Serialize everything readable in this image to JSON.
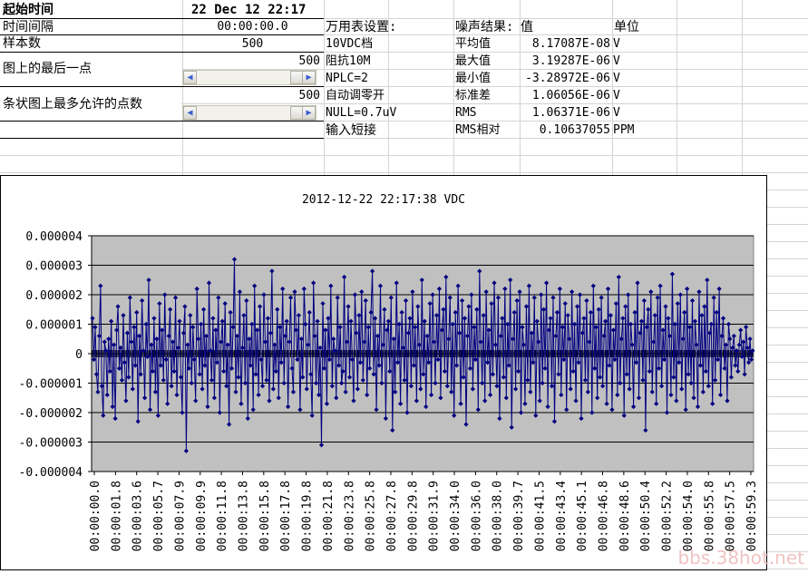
{
  "info": {
    "start_label": "起始时间",
    "start_value": "22 Dec 12 22:17",
    "interval_label": "时间间隔",
    "interval_value": "00:00:00.0",
    "samples_label": "样本数",
    "samples_value": "500",
    "last_point_label": "图上的最后一点",
    "last_point_value": "500",
    "max_points_label": "条状图上最多允许的点数",
    "max_points_value": "500"
  },
  "settings": {
    "header": "万用表设置:",
    "items": [
      "10VDC档",
      "阻抗10M",
      "NPLC=2",
      "自动调零开",
      "NULL=0.7uV",
      "输入短接"
    ]
  },
  "results": {
    "header_name": "噪声结果:",
    "header_value": "值",
    "header_unit": "单位",
    "rows": [
      {
        "name": "平均值",
        "value": "8.17087E-08",
        "unit": "V"
      },
      {
        "name": "最大值",
        "value": "3.19287E-06",
        "unit": "V"
      },
      {
        "name": "最小值",
        "value": "-3.28972E-06",
        "unit": "V"
      },
      {
        "name": "标准差",
        "value": "1.06056E-06",
        "unit": "V"
      },
      {
        "name": "RMS",
        "value": "1.06371E-06",
        "unit": "V"
      },
      {
        "name": "RMS相对",
        "value": "0.10637055",
        "unit": "PPM"
      }
    ]
  },
  "watermark": "bbs.38hot.net",
  "colors": {
    "plot_bg": "#c0c0c0",
    "series": "#000080",
    "gridline": "#000000"
  },
  "chart_data": {
    "type": "line",
    "title": "2012-12-22 22:17:38 VDC",
    "ylim": [
      -4e-06,
      4e-06
    ],
    "yticks": [
      "0.000004",
      "0.000003",
      "0.000002",
      "0.000001",
      "0",
      "-0.000001",
      "-0.000002",
      "-0.000003",
      "-0.000004"
    ],
    "xticks": [
      "00:00:00.0",
      "00:00:01.8",
      "00:00:03.6",
      "00:00:05.7",
      "00:00:07.9",
      "00:00:09.9",
      "00:00:11.8",
      "00:00:13.8",
      "00:00:15.8",
      "00:00:17.8",
      "00:00:19.8",
      "00:00:21.8",
      "00:00:23.8",
      "00:00:25.8",
      "00:00:27.8",
      "00:00:29.8",
      "00:00:31.9",
      "00:00:34.0",
      "00:00:36.0",
      "00:00:38.0",
      "00:00:39.7",
      "00:00:41.5",
      "00:00:43.4",
      "00:00:45.1",
      "00:00:46.8",
      "00:00:48.6",
      "00:00:50.4",
      "00:00:52.2",
      "00:00:54.0",
      "00:00:55.8",
      "00:00:57.5",
      "00:00:59.3"
    ],
    "grid": true,
    "legend": "none",
    "series": [
      {
        "values": [
          1.2e-06,
          -2e-07,
          9e-07,
          -7e-07,
          -1.3e-06,
          6e-07,
          2.3e-06,
          -1.1e-06,
          -2.1e-06,
          4e-07,
          1e-07,
          -1.4e-06,
          5e-07,
          -6e-07,
          1.1e-06,
          -1.8e-06,
          3e-07,
          -2.2e-06,
          8e-07,
          1.6e-06,
          -5e-07,
          2e-07,
          -9e-07,
          1.3e-06,
          -3e-07,
          -1.6e-06,
          7e-07,
          -8e-07,
          1.9e-06,
          4e-07,
          -1.2e-06,
          9e-07,
          -4e-07,
          1.4e-06,
          -2.3e-06,
          6e-07,
          -7e-07,
          1.8e-06,
          1e-07,
          -1.5e-06,
          1e-06,
          -1e-07,
          2.5e-06,
          -1.9e-06,
          3e-07,
          -6e-07,
          1.2e-06,
          -1.3e-06,
          5e-07,
          -2.1e-06,
          1.7e-06,
          -4e-07,
          8e-07,
          -9e-07,
          2e-06,
          -2e-07,
          -1.7e-06,
          6e-07,
          1.5e-06,
          -1.1e-06,
          4e-07,
          -6e-07,
          1.9e-06,
          -1.4e-06,
          2e-07,
          1.1e-06,
          -8e-07,
          -2e-06,
          7e-07,
          1.6e-06,
          -3.3e-06,
          3e-07,
          -5e-07,
          1.3e-06,
          -1e-06,
          9e-07,
          -2e-07,
          -1.6e-06,
          2.2e-06,
          5e-07,
          -7e-07,
          1e-06,
          -1.2e-06,
          1.5e-06,
          -4e-07,
          6e-07,
          -1.8e-06,
          2.4e-06,
          1e-07,
          -9e-07,
          1.2e-06,
          -1.5e-06,
          8e-07,
          -3e-07,
          1.9e-06,
          -2e-06,
          4e-07,
          1.1e-06,
          -6e-07,
          1.7e-06,
          -1.1e-06,
          3e-07,
          -2.4e-06,
          1.4e-06,
          -5e-07,
          9e-07,
          3.2e-06,
          -1.3e-06,
          6e-07,
          -8e-07,
          2.1e-06,
          -1.7e-06,
          2e-07,
          1.3e-06,
          -1e-06,
          1.8e-06,
          -2.2e-06,
          5e-07,
          -4e-07,
          1e-06,
          -1.9e-06,
          2.3e-06,
          -7e-07,
          8e-07,
          -1.4e-06,
          1.6e-06,
          -2e-07,
          -1.1e-06,
          2e-06,
          4e-07,
          -9e-07,
          1.2e-06,
          -1.6e-06,
          7e-07,
          2.8e-06,
          -1.2e-06,
          3e-07,
          -6e-07,
          1.5e-06,
          -1.5e-06,
          9e-07,
          -3e-07,
          2.2e-06,
          -1e-06,
          6e-07,
          1.1e-06,
          -1.8e-06,
          4e-07,
          1.9e-06,
          -5e-07,
          -1.3e-06,
          2.1e-06,
          8e-07,
          -2e-07,
          1.3e-06,
          -1.9e-06,
          5e-07,
          -8e-07,
          2.2e-06,
          1e-06,
          -1.2e-06,
          3e-07,
          1.4e-06,
          -7e-07,
          -2.1e-06,
          2.4e-06,
          6e-07,
          -1e-06,
          1.1e-06,
          -1.4e-06,
          2e-07,
          -3.1e-06,
          1.7e-06,
          -5e-07,
          8e-07,
          -1.7e-06,
          1.2e-06,
          -2e-07,
          2.3e-06,
          -1.1e-06,
          5e-07,
          1e-07,
          -1.5e-06,
          1.9e-06,
          -4e-07,
          9e-07,
          -1e-06,
          -6e-07,
          2.6e-06,
          -1.3e-06,
          4e-07,
          1.6e-06,
          -8e-07,
          1.1e-06,
          -2e-07,
          -1.6e-06,
          2e-06,
          7e-07,
          -1.2e-06,
          1.3e-06,
          -3e-07,
          2.1e-06,
          -9e-07,
          4e-07,
          1.8e-06,
          -1.4e-06,
          9e-07,
          -5e-07,
          1.4e-06,
          2.8e-06,
          -7e-07,
          1.2e-06,
          -1.9e-06,
          6e-07,
          -4e-07,
          2.3e-06,
          -1e-06,
          3e-07,
          1.5e-06,
          -2.2e-06,
          8e-07,
          1.1e-06,
          -6e-07,
          1.9e-06,
          -2.6e-06,
          5e-07,
          -1.3e-06,
          2.4e-06,
          -3e-07,
          1e-06,
          -1.7e-06,
          1.4e-06,
          2e-07,
          -9e-07,
          1.8e-06,
          -2e-06,
          7e-07,
          1.2e-06,
          -1.1e-06,
          2.1e-06,
          -4e-07,
          9e-07,
          -1.6e-06,
          1.6e-06,
          3e-07,
          -1.2e-06,
          2.5e-06,
          -7e-07,
          1.1e-06,
          -1.8e-06,
          6e-07,
          -3e-07,
          1.7e-06,
          -1.4e-06,
          2e-06,
          4e-07,
          -1e-06,
          1.3e-06,
          -2e-07,
          2.2e-06,
          -1.5e-06,
          8e-07,
          1.5e-06,
          -6e-07,
          2.6e-06,
          -1.1e-06,
          5e-07,
          1.9e-06,
          -1.3e-06,
          1e-06,
          -2.1e-06,
          1.4e-06,
          -4e-07,
          2.3e-06,
          7e-07,
          -1.7e-06,
          1.8e-06,
          -8e-07,
          1.2e-06,
          -2.4e-06,
          6e-07,
          1.6e-06,
          -5e-07,
          2e-06,
          -1.2e-06,
          9e-07,
          -2e-07,
          1.5e-06,
          -1.9e-06,
          2.8e-06,
          4e-07,
          -1e-06,
          1.3e-06,
          -1.6e-06,
          2.1e-06,
          -3e-07,
          8e-07,
          -1.4e-06,
          1.7e-06,
          -7e-07,
          2.4e-06,
          3e-07,
          -1.1e-06,
          1.9e-06,
          -2.2e-06,
          6e-07,
          1.2e-06,
          -8e-07,
          2.2e-06,
          -1.5e-06,
          1e-06,
          -4e-07,
          2.5e-06,
          -2.5e-06,
          5e-07,
          1.4e-06,
          -1.2e-06,
          1.8e-06,
          -6e-07,
          2.1e-06,
          -2e-06,
          9e-07,
          3e-07,
          -1.7e-06,
          1.6e-06,
          -9e-07,
          2.3e-06,
          -1.3e-06,
          7e-07,
          -3e-07,
          1.9e-06,
          -2.1e-06,
          1.1e-06,
          4e-07,
          -1.6e-06,
          2e-06,
          -1e-06,
          1.5e-06,
          -5e-07,
          2.4e-06,
          -1.8e-06,
          8e-07,
          1.2e-06,
          -1.1e-06,
          1.9e-06,
          -2.3e-06,
          6e-07,
          1.4e-06,
          -7e-07,
          2.2e-06,
          -1.4e-06,
          9e-07,
          -2e-07,
          1.7e-06,
          -1.9e-06,
          1.3e-06,
          5e-07,
          -1.2e-06,
          2.1e-06,
          -6e-07,
          1e-06,
          -1.6e-06,
          1.6e-06,
          -3e-07,
          2e-06,
          -2.2e-06,
          7e-07,
          1.2e-06,
          -9e-07,
          1.8e-06,
          -1.3e-06,
          4e-07,
          1.4e-06,
          -2e-06,
          2.3e-06,
          -5e-07,
          9e-07,
          -1.5e-06,
          1.5e-06,
          -8e-07,
          1.9e-06,
          -1.1e-06,
          6e-07,
          1.1e-06,
          -1.7e-06,
          2.2e-06,
          -4e-07,
          1.3e-06,
          -1.9e-06,
          8e-07,
          -2e-07,
          1.7e-06,
          -1.4e-06,
          2.6e-06,
          -1e-06,
          5e-07,
          1.2e-06,
          -2.1e-06,
          1.6e-06,
          -7e-07,
          2e-06,
          -1.2e-06,
          1e-06,
          3e-07,
          -1.8e-06,
          1.4e-06,
          -3e-07,
          2.4e-06,
          -1.5e-06,
          7e-07,
          1.1e-06,
          -9e-07,
          1.8e-06,
          -2.6e-06,
          9e-07,
          1.5e-06,
          -6e-07,
          2.1e-06,
          -1.3e-06,
          4e-07,
          1.3e-06,
          -1.7e-06,
          1.9e-06,
          -5e-07,
          2.3e-06,
          -1.1e-06,
          8e-07,
          -2e-07,
          1.6e-06,
          -2e-06,
          1.2e-06,
          6e-07,
          -1.4e-06,
          2.7e-06,
          -8e-07,
          1e-06,
          -1.6e-06,
          1.7e-06,
          -3e-07,
          2e-06,
          -1.2e-06,
          5e-07,
          1.4e-06,
          -1.9e-06,
          2.2e-06,
          -7e-07,
          9e-07,
          -1e-06,
          1.8e-06,
          -1.5e-06,
          1.1e-06,
          3e-07,
          -1.8e-06,
          2.1e-06,
          -4e-07,
          1.3e-06,
          -1.3e-06,
          1.6e-06,
          -6e-07,
          2.5e-06,
          -1.1e-06,
          7e-07,
          1e-06,
          -1.7e-06,
          1.9e-06,
          -9e-07,
          1.4e-06,
          -2e-07,
          2.2e-06,
          -1.4e-06,
          6e-07,
          1.2e-06,
          -5e-07,
          3e-07,
          -1.6e-06,
          1e-06,
          5e-07,
          -8e-07,
          2e-07,
          6e-07,
          -4e-07,
          1e-07,
          -6e-07,
          3e-07,
          8e-07,
          -1e-07,
          4e-07,
          -7e-07,
          9e-07,
          2e-07,
          -3e-07,
          5e-07,
          -2e-07,
          1e-07
        ]
      }
    ]
  }
}
